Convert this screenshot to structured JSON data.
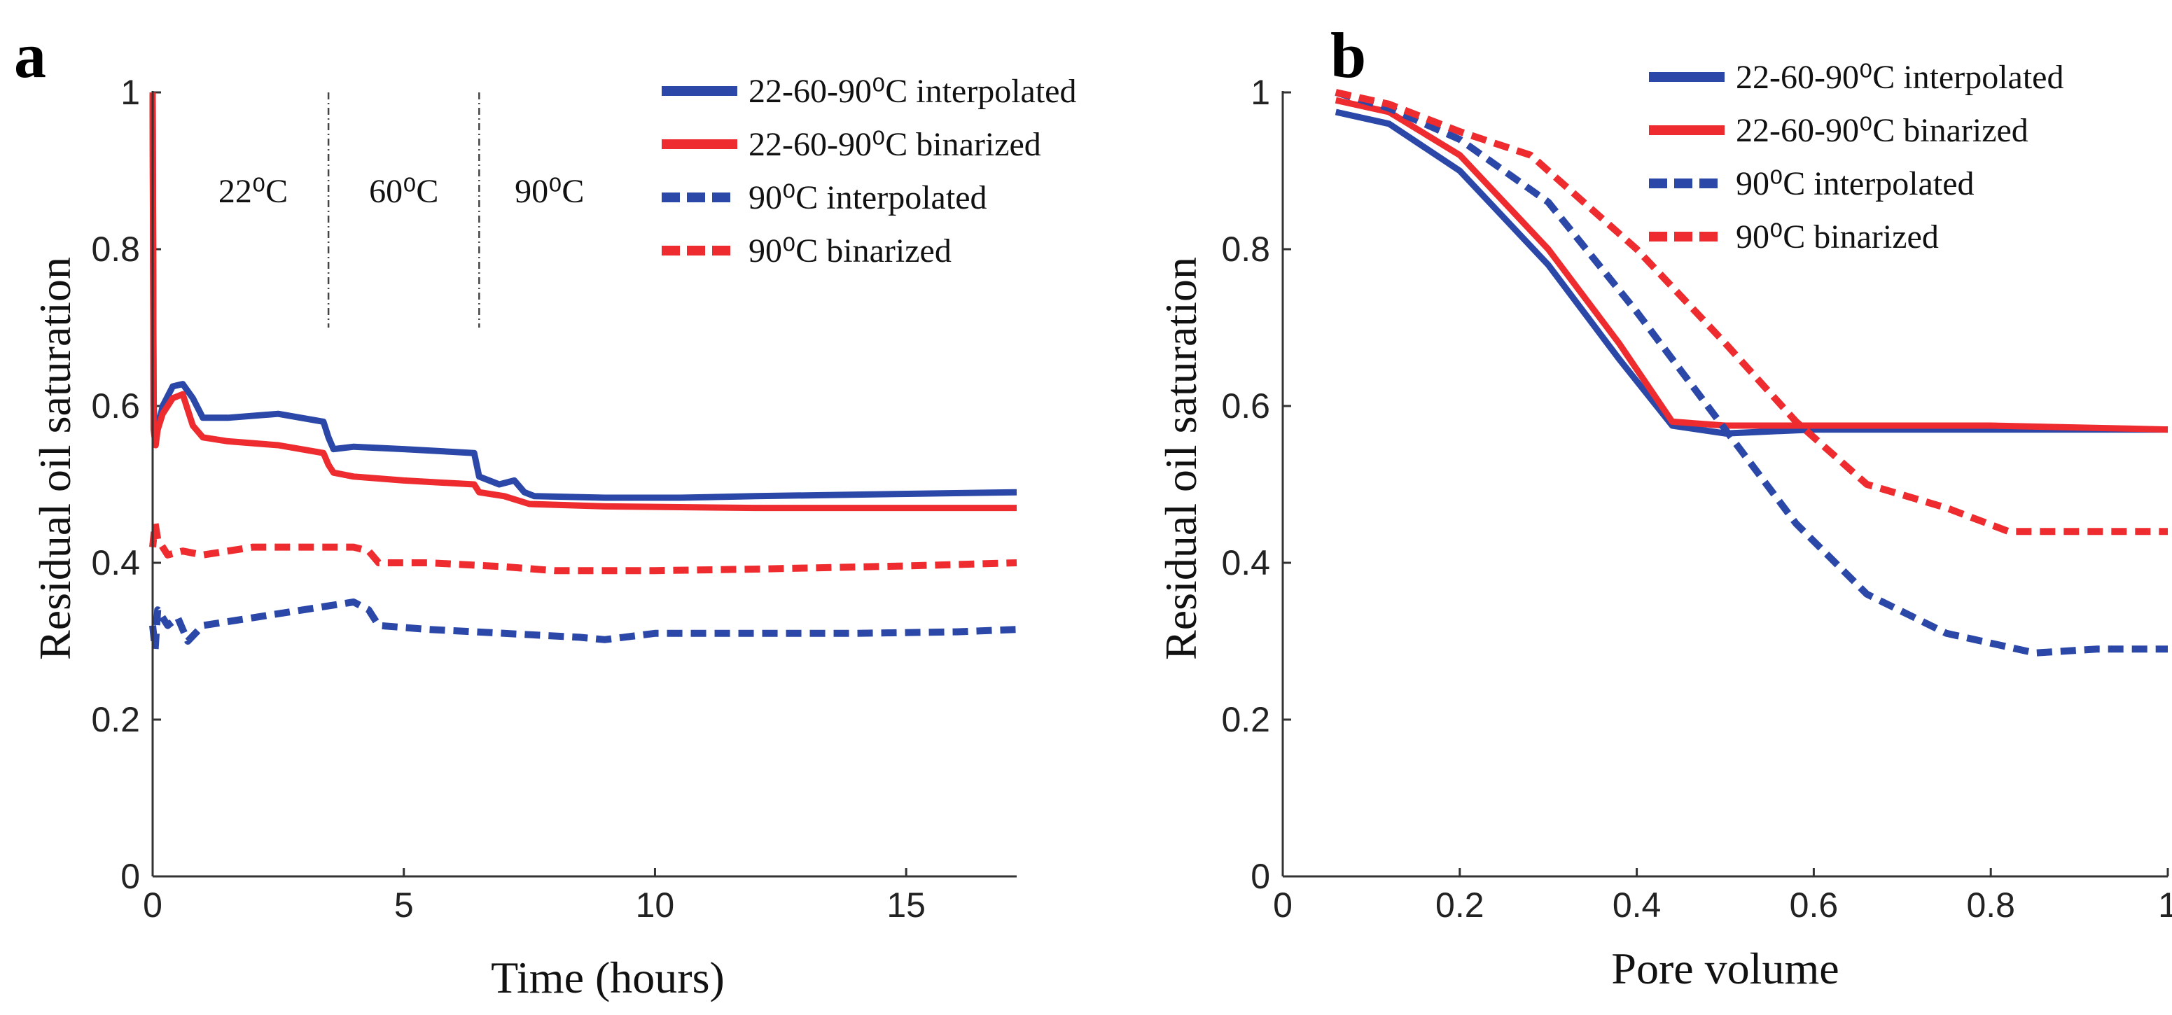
{
  "colors": {
    "blue": "#2b47a8",
    "red": "#ee2b2e"
  },
  "chart_data": [
    {
      "type": "line",
      "panel_label": "a",
      "xlabel": "Time (hours)",
      "ylabel": "Residual oil saturation",
      "xlim": [
        0,
        17.2
      ],
      "ylim": [
        0,
        1
      ],
      "xticks": [
        0,
        5,
        10,
        15
      ],
      "yticks": [
        0,
        0.2,
        0.4,
        0.6,
        0.8,
        1
      ],
      "ytick_labels": [
        "0",
        "0.2",
        "0.4",
        "0.6",
        "0.8",
        "1"
      ],
      "vlines": [
        3.5,
        6.5
      ],
      "annotations": [
        {
          "text": "22⁰C",
          "x": 2.0,
          "y": 0.86
        },
        {
          "text": "60⁰C",
          "x": 5.0,
          "y": 0.86
        },
        {
          "text": "90⁰C",
          "x": 7.9,
          "y": 0.86
        }
      ],
      "legend": [
        "22-60-90⁰C interpolated",
        "22-60-90⁰C binarized",
        "90⁰C interpolated",
        "90⁰C binarized"
      ],
      "series": [
        {
          "name": "22-60-90⁰C interpolated",
          "color": "blue",
          "dash": false,
          "x": [
            0,
            0.02,
            0.06,
            0.1,
            0.2,
            0.4,
            0.6,
            0.8,
            1.0,
            1.5,
            2.5,
            3.4,
            3.5,
            3.6,
            4.0,
            5.0,
            6.4,
            6.5,
            6.9,
            7.2,
            7.4,
            7.6,
            9.0,
            10.5,
            12.0,
            14.0,
            17.2
          ],
          "y": [
            1.0,
            0.6,
            0.56,
            0.57,
            0.6,
            0.625,
            0.628,
            0.61,
            0.585,
            0.585,
            0.59,
            0.58,
            0.56,
            0.545,
            0.548,
            0.545,
            0.54,
            0.51,
            0.5,
            0.505,
            0.49,
            0.485,
            0.483,
            0.483,
            0.485,
            0.487,
            0.49
          ]
        },
        {
          "name": "22-60-90⁰C binarized",
          "color": "red",
          "dash": false,
          "x": [
            0,
            0.02,
            0.06,
            0.1,
            0.2,
            0.4,
            0.6,
            0.8,
            1.0,
            1.5,
            2.5,
            3.4,
            3.5,
            3.6,
            4.0,
            5.0,
            6.4,
            6.5,
            7.0,
            7.5,
            9.0,
            12.0,
            17.2
          ],
          "y": [
            1.0,
            0.57,
            0.55,
            0.57,
            0.59,
            0.61,
            0.615,
            0.575,
            0.56,
            0.555,
            0.55,
            0.54,
            0.525,
            0.515,
            0.51,
            0.505,
            0.5,
            0.49,
            0.485,
            0.475,
            0.472,
            0.47,
            0.47
          ]
        },
        {
          "name": "90⁰C interpolated",
          "color": "blue",
          "dash": true,
          "x": [
            0,
            0.05,
            0.1,
            0.3,
            0.5,
            0.7,
            1.0,
            2.0,
            3.0,
            4.0,
            4.3,
            4.5,
            5.5,
            7.0,
            8.5,
            9.0,
            10.0,
            12.0,
            14.0,
            16.0,
            17.2
          ],
          "y": [
            0.32,
            0.29,
            0.34,
            0.32,
            0.33,
            0.3,
            0.32,
            0.33,
            0.34,
            0.35,
            0.34,
            0.32,
            0.315,
            0.31,
            0.305,
            0.302,
            0.31,
            0.31,
            0.31,
            0.312,
            0.315
          ]
        },
        {
          "name": "90⁰C binarized",
          "color": "red",
          "dash": true,
          "x": [
            0,
            0.05,
            0.1,
            0.3,
            0.6,
            1.0,
            2.0,
            3.0,
            4.0,
            4.3,
            4.5,
            5.5,
            7.0,
            8.0,
            10.0,
            12.0,
            15.0,
            17.2
          ],
          "y": [
            0.42,
            0.45,
            0.43,
            0.41,
            0.415,
            0.41,
            0.42,
            0.42,
            0.42,
            0.415,
            0.4,
            0.4,
            0.395,
            0.39,
            0.39,
            0.392,
            0.396,
            0.4
          ]
        }
      ]
    },
    {
      "type": "line",
      "panel_label": "b",
      "xlabel": "Pore volume",
      "ylabel": "Residual oil saturation",
      "xlim": [
        0,
        1
      ],
      "ylim": [
        0,
        1
      ],
      "xticks": [
        0,
        0.2,
        0.4,
        0.6,
        0.8,
        1
      ],
      "xtick_labels": [
        "0",
        "0.2",
        "0.4",
        "0.6",
        "0.8",
        "1"
      ],
      "yticks": [
        0,
        0.2,
        0.4,
        0.6,
        0.8,
        1
      ],
      "ytick_labels": [
        "0",
        "0.2",
        "0.4",
        "0.6",
        "0.8",
        "1"
      ],
      "legend": [
        "22-60-90⁰C interpolated",
        "22-60-90⁰C binarized",
        "90⁰C interpolated",
        "90⁰C binarized"
      ],
      "series": [
        {
          "name": "22-60-90⁰C interpolated",
          "color": "blue",
          "dash": false,
          "x": [
            0.06,
            0.12,
            0.2,
            0.3,
            0.38,
            0.44,
            0.5,
            0.6,
            0.8,
            1.0
          ],
          "y": [
            0.975,
            0.96,
            0.9,
            0.78,
            0.66,
            0.575,
            0.565,
            0.57,
            0.57,
            0.57
          ]
        },
        {
          "name": "22-60-90⁰C binarized",
          "color": "red",
          "dash": false,
          "x": [
            0.06,
            0.12,
            0.2,
            0.3,
            0.38,
            0.44,
            0.5,
            0.6,
            0.8,
            1.0
          ],
          "y": [
            0.99,
            0.975,
            0.92,
            0.8,
            0.68,
            0.58,
            0.575,
            0.575,
            0.575,
            0.57
          ]
        },
        {
          "name": "90⁰C interpolated",
          "color": "blue",
          "dash": true,
          "x": [
            0.06,
            0.12,
            0.2,
            0.3,
            0.4,
            0.5,
            0.58,
            0.66,
            0.75,
            0.85,
            0.92,
            1.0
          ],
          "y": [
            1.0,
            0.98,
            0.94,
            0.86,
            0.72,
            0.57,
            0.45,
            0.36,
            0.31,
            0.285,
            0.29,
            0.29
          ]
        },
        {
          "name": "90⁰C binarized",
          "color": "red",
          "dash": true,
          "x": [
            0.06,
            0.12,
            0.2,
            0.28,
            0.4,
            0.5,
            0.58,
            0.66,
            0.75,
            0.82,
            0.9,
            1.0
          ],
          "y": [
            1.0,
            0.985,
            0.95,
            0.92,
            0.8,
            0.68,
            0.58,
            0.5,
            0.47,
            0.44,
            0.44,
            0.44
          ]
        }
      ]
    }
  ]
}
